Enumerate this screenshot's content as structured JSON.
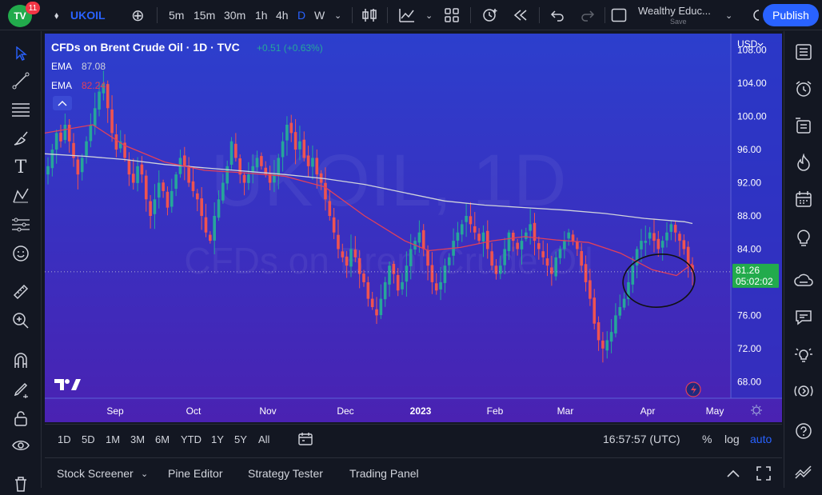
{
  "toolbar": {
    "logo_text": "TV",
    "notification_count": "11",
    "symbol": "UKOIL",
    "intervals": [
      "5m",
      "15m",
      "30m",
      "1h",
      "4h",
      "D",
      "W"
    ],
    "active_interval": "D",
    "layout_name": "Wealthy Educ...",
    "layout_status": "Save",
    "publish_label": "Publish"
  },
  "legend": {
    "title": "CFDs on Brent Crude Oil · 1D · TVC",
    "change": "+0.51 (+0.63%)",
    "ema1_label": "EMA",
    "ema1_value": "87.08",
    "ema2_label": "EMA",
    "ema2_value": "82.24"
  },
  "watermark": {
    "symbol": "UKOIL, 1D",
    "description": "CFDs on Brent Crude Oil"
  },
  "price_scale": {
    "currency": "USD",
    "labels": [
      "108.00",
      "104.00",
      "100.00",
      "96.00",
      "92.00",
      "88.00",
      "84.00",
      "80.00",
      "76.00",
      "72.00",
      "68.00"
    ],
    "current_price": "81.26",
    "countdown": "05:02:02"
  },
  "time_scale": {
    "labels": [
      "Sep",
      "Oct",
      "Nov",
      "Dec",
      "2023",
      "Feb",
      "Mar",
      "Apr",
      "May"
    ]
  },
  "bottom": {
    "ranges": [
      "1D",
      "5D",
      "1M",
      "3M",
      "6M",
      "YTD",
      "1Y",
      "5Y",
      "All"
    ],
    "clock": "16:57:57 (UTC)",
    "percent": "%",
    "log": "log",
    "auto": "auto"
  },
  "panels": {
    "items": [
      "Stock Screener",
      "Pine Editor",
      "Strategy Tester",
      "Trading Panel"
    ]
  },
  "colors": {
    "up": "#26a69a",
    "down": "#ef5350",
    "ema_slow": "#d1d4dc",
    "ema_fast": "#e2405a",
    "accent": "#2962ff",
    "price_badge": "#22ab4c"
  },
  "chart_data": {
    "type": "candlestick",
    "title": "CFDs on Brent Crude Oil · 1D · TVC",
    "ylim": [
      66,
      110
    ],
    "price_ticks": [
      108,
      104,
      100,
      96,
      92,
      88,
      84,
      80,
      76,
      72,
      68
    ],
    "time_ticks": [
      "Sep",
      "Oct",
      "Nov",
      "Dec",
      "2023",
      "Feb",
      "Mar",
      "Apr",
      "May"
    ],
    "last_price": 81.26,
    "ema_slow_last": 87.08,
    "ema_fast_last": 82.24,
    "close_path": [
      94,
      96,
      98,
      97,
      99,
      97,
      95,
      93,
      95,
      97,
      99,
      101,
      103,
      104,
      101,
      98,
      96,
      97,
      95,
      93,
      92,
      94,
      93,
      90,
      88,
      90,
      92,
      91,
      89,
      91,
      93,
      95,
      94,
      92,
      91,
      90,
      88,
      86,
      85,
      88,
      90,
      92,
      94,
      97,
      95,
      93,
      92,
      93,
      94,
      95,
      94,
      93,
      92,
      93,
      95,
      97,
      99,
      98,
      96,
      97,
      95,
      94,
      95,
      93,
      92,
      90,
      88,
      86,
      84,
      83,
      82,
      84,
      83,
      81,
      80,
      78,
      77,
      76,
      78,
      80,
      82,
      81,
      79,
      80,
      82,
      84,
      85,
      86,
      84,
      82,
      80,
      79,
      80,
      82,
      83,
      85,
      86,
      87,
      88,
      87,
      86,
      85,
      86,
      84,
      82,
      81,
      82,
      84,
      86,
      85,
      84,
      85,
      86,
      87,
      85,
      84,
      83,
      82,
      81,
      83,
      84,
      85,
      86,
      85,
      84,
      82,
      80,
      78,
      75,
      73,
      72,
      73,
      74,
      76,
      77,
      78,
      80,
      82,
      84,
      85,
      85,
      86,
      85,
      84,
      85,
      86,
      87,
      86,
      85,
      84,
      82,
      81.26
    ],
    "ema_slow_path": [
      [
        0,
        95.5
      ],
      [
        50,
        95.2
      ],
      [
        100,
        94.8
      ],
      [
        150,
        94.2
      ],
      [
        200,
        93.8
      ],
      [
        250,
        93.4
      ],
      [
        300,
        93
      ],
      [
        350,
        92.5
      ],
      [
        400,
        91.8
      ],
      [
        450,
        90.8
      ],
      [
        500,
        89.8
      ],
      [
        550,
        89.3
      ],
      [
        600,
        89
      ],
      [
        650,
        88.7
      ],
      [
        700,
        88.3
      ],
      [
        750,
        87.7
      ],
      [
        800,
        87.3
      ],
      [
        810,
        87.08
      ]
    ],
    "ema_fast_path": [
      [
        0,
        98
      ],
      [
        60,
        99
      ],
      [
        100,
        96.5
      ],
      [
        150,
        94.5
      ],
      [
        200,
        93.5
      ],
      [
        250,
        93.2
      ],
      [
        300,
        92.8
      ],
      [
        350,
        91.5
      ],
      [
        400,
        88
      ],
      [
        450,
        85
      ],
      [
        480,
        83.8
      ],
      [
        520,
        84.2
      ],
      [
        560,
        85
      ],
      [
        600,
        85.5
      ],
      [
        640,
        85.1
      ],
      [
        680,
        84.8
      ],
      [
        720,
        83.5
      ],
      [
        760,
        81.5
      ],
      [
        790,
        80.8
      ],
      [
        810,
        82.24
      ]
    ]
  }
}
